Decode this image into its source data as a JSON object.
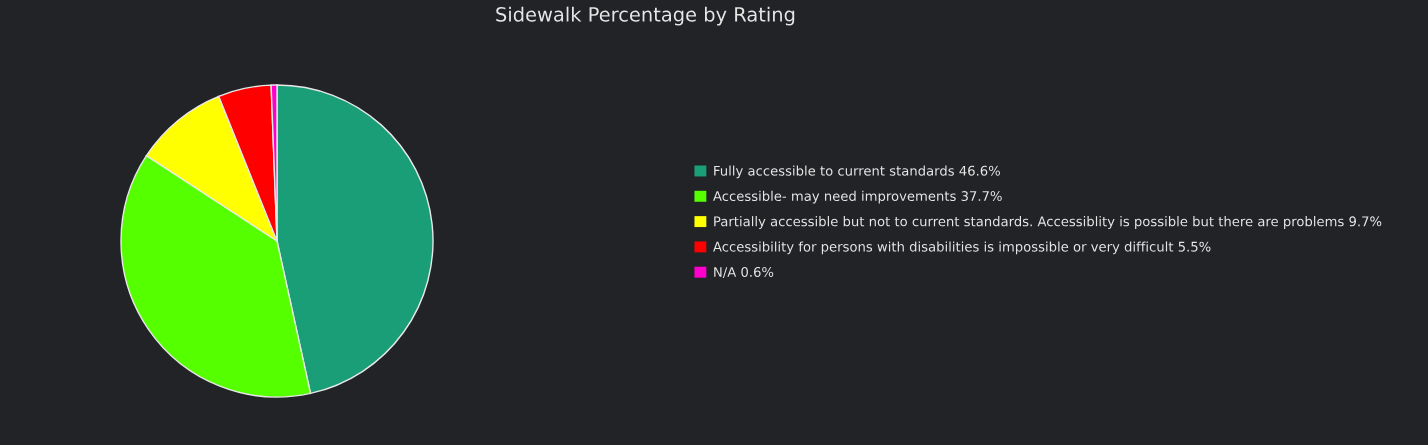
{
  "chart_data": {
    "type": "pie",
    "title": "Sidewalk Percentage by Rating",
    "categories": [
      "Fully accessible to current standards",
      "Accessible- may need improvements",
      "Partially accessible but not to current standards. Accessiblity is possible but there are problems",
      "Accessibility for persons with disabilities is impossible or very difficult",
      "N/A"
    ],
    "values": [
      46.6,
      37.7,
      9.7,
      5.5,
      0.6
    ],
    "value_labels": [
      "46.6%",
      "37.7%",
      "9.7%",
      "5.5%",
      "0.6%"
    ],
    "colors": [
      "#1a9e77",
      "#55ff00",
      "#ffff00",
      "#ff0000",
      "#ff00cc"
    ],
    "legend": "right"
  }
}
